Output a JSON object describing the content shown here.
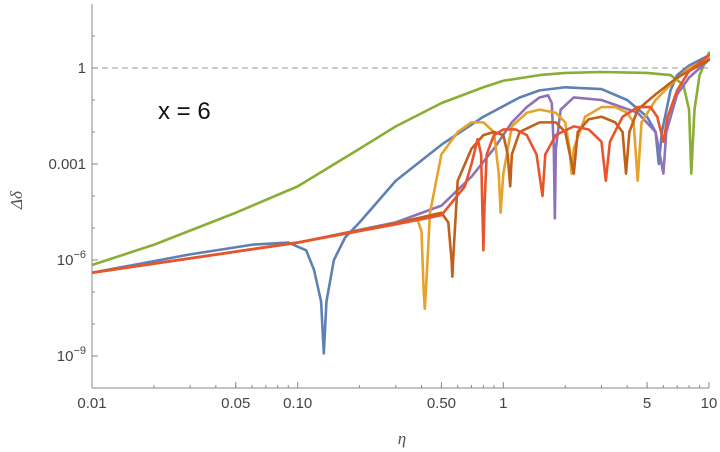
{
  "chart_data": {
    "type": "line",
    "xlabel": "η",
    "ylabel": "Δδ",
    "x_scale": "log",
    "y_scale": "log",
    "xlim": [
      0.01,
      10
    ],
    "ylim": [
      1e-10,
      100
    ],
    "x_ticks": [
      {
        "value": 0.01,
        "label": "0.01"
      },
      {
        "value": 0.05,
        "label": "0.05"
      },
      {
        "value": 0.1,
        "label": "0.10"
      },
      {
        "value": 0.5,
        "label": "0.50"
      },
      {
        "value": 1,
        "label": "1"
      },
      {
        "value": 5,
        "label": "5"
      },
      {
        "value": 10,
        "label": "10"
      }
    ],
    "y_ticks": [
      {
        "value": 1,
        "label": "1",
        "exp": ""
      },
      {
        "value": 0.001,
        "label": "0.001",
        "exp": ""
      },
      {
        "value": 1e-06,
        "label": "10",
        "exp": "−6"
      },
      {
        "value": 1e-09,
        "label": "10",
        "exp": "−9"
      }
    ],
    "reference_line": {
      "y": 1,
      "style": "dashed",
      "color": "#9a9a9a"
    },
    "annotation": "x = 6",
    "grid": false,
    "legend": "none",
    "series": [
      {
        "color": "#8aae35",
        "points": [
          [
            0.01,
            7e-07
          ],
          [
            0.02,
            3e-06
          ],
          [
            0.05,
            3e-05
          ],
          [
            0.1,
            0.0002
          ],
          [
            0.2,
            0.003
          ],
          [
            0.3,
            0.015
          ],
          [
            0.5,
            0.08
          ],
          [
            0.8,
            0.25
          ],
          [
            1,
            0.4
          ],
          [
            1.5,
            0.6
          ],
          [
            2,
            0.7
          ],
          [
            3,
            0.75
          ],
          [
            5,
            0.7
          ],
          [
            6.5,
            0.6
          ],
          [
            7.5,
            0.3
          ],
          [
            8,
            0.05
          ],
          [
            8.2,
            0.0005
          ],
          [
            8.5,
            0.05
          ],
          [
            9,
            0.6
          ],
          [
            10,
            3
          ]
        ]
      },
      {
        "color": "#5e81b5",
        "points": [
          [
            0.01,
            4e-07
          ],
          [
            0.03,
            1.5e-06
          ],
          [
            0.06,
            3e-06
          ],
          [
            0.09,
            3.5e-06
          ],
          [
            0.11,
            2e-06
          ],
          [
            0.12,
            5e-07
          ],
          [
            0.13,
            5e-08
          ],
          [
            0.134,
            1.2e-09
          ],
          [
            0.138,
            5e-08
          ],
          [
            0.15,
            1e-06
          ],
          [
            0.17,
            5e-06
          ],
          [
            0.2,
            1.5e-05
          ],
          [
            0.3,
            0.0003
          ],
          [
            0.5,
            0.004
          ],
          [
            0.8,
            0.03
          ],
          [
            1.2,
            0.12
          ],
          [
            1.5,
            0.2
          ],
          [
            2,
            0.25
          ],
          [
            3,
            0.22
          ],
          [
            4,
            0.1
          ],
          [
            5,
            0.03
          ],
          [
            5.5,
            0.01
          ],
          [
            5.7,
            0.001
          ],
          [
            5.9,
            0.01
          ],
          [
            6.5,
            0.2
          ],
          [
            7,
            0.6
          ],
          [
            8,
            1.2
          ],
          [
            10,
            2.5
          ]
        ]
      },
      {
        "color": "#8e72b8",
        "points": [
          [
            0.01,
            4e-07
          ],
          [
            0.1,
            3.5e-06
          ],
          [
            0.3,
            1.5e-05
          ],
          [
            0.5,
            5e-05
          ],
          [
            0.7,
            0.0004
          ],
          [
            0.9,
            0.003
          ],
          [
            1.1,
            0.02
          ],
          [
            1.3,
            0.06
          ],
          [
            1.5,
            0.12
          ],
          [
            1.65,
            0.14
          ],
          [
            1.72,
            0.08
          ],
          [
            1.76,
            0.003
          ],
          [
            1.78,
            2e-05
          ],
          [
            1.8,
            0.003
          ],
          [
            1.9,
            0.05
          ],
          [
            2.2,
            0.12
          ],
          [
            3,
            0.1
          ],
          [
            4.5,
            0.04
          ],
          [
            5.5,
            0.01
          ],
          [
            6,
            0.0005
          ],
          [
            6.2,
            0.01
          ],
          [
            7,
            0.15
          ],
          [
            8,
            0.5
          ],
          [
            10,
            1.8
          ]
        ]
      },
      {
        "color": "#e6a22b",
        "points": [
          [
            0.01,
            4e-07
          ],
          [
            0.1,
            3.5e-06
          ],
          [
            0.3,
            1.4e-05
          ],
          [
            0.38,
            2e-05
          ],
          [
            0.4,
            8e-06
          ],
          [
            0.41,
            1e-07
          ],
          [
            0.415,
            3e-08
          ],
          [
            0.42,
            1e-07
          ],
          [
            0.44,
            3e-05
          ],
          [
            0.5,
            0.002
          ],
          [
            0.6,
            0.01
          ],
          [
            0.7,
            0.02
          ],
          [
            0.8,
            0.02
          ],
          [
            0.9,
            0.01
          ],
          [
            0.95,
            0.0005
          ],
          [
            0.97,
            3e-05
          ],
          [
            1,
            0.0005
          ],
          [
            1.1,
            0.015
          ],
          [
            1.3,
            0.04
          ],
          [
            1.5,
            0.05
          ],
          [
            1.8,
            0.04
          ],
          [
            2,
            0.02
          ],
          [
            2.1,
            0.003
          ],
          [
            2.15,
            0.0005
          ],
          [
            2.2,
            0.003
          ],
          [
            2.5,
            0.03
          ],
          [
            3,
            0.06
          ],
          [
            3.5,
            0.06
          ],
          [
            4,
            0.04
          ],
          [
            4.3,
            0.02
          ],
          [
            4.5,
            0.0003
          ],
          [
            4.7,
            0.02
          ],
          [
            5.5,
            0.1
          ],
          [
            6.5,
            0.3
          ],
          [
            8,
            1
          ],
          [
            10,
            2
          ]
        ]
      },
      {
        "color": "#c0601a",
        "points": [
          [
            0.01,
            4e-07
          ],
          [
            0.1,
            3.5e-06
          ],
          [
            0.3,
            1.4e-05
          ],
          [
            0.5,
            3e-05
          ],
          [
            0.54,
            1.5e-05
          ],
          [
            0.56,
            1e-06
          ],
          [
            0.565,
            3e-07
          ],
          [
            0.57,
            1e-06
          ],
          [
            0.6,
            0.0003
          ],
          [
            0.7,
            0.003
          ],
          [
            0.8,
            0.008
          ],
          [
            0.9,
            0.01
          ],
          [
            1,
            0.008
          ],
          [
            1.05,
            0.002
          ],
          [
            1.08,
            0.0002
          ],
          [
            1.1,
            0.002
          ],
          [
            1.2,
            0.01
          ],
          [
            1.5,
            0.02
          ],
          [
            1.8,
            0.02
          ],
          [
            2,
            0.01
          ],
          [
            2.2,
            0.0005
          ],
          [
            2.3,
            0.01
          ],
          [
            2.6,
            0.025
          ],
          [
            3,
            0.03
          ],
          [
            3.5,
            0.02
          ],
          [
            3.8,
            0.01
          ],
          [
            3.95,
            0.0005
          ],
          [
            4.1,
            0.01
          ],
          [
            4.5,
            0.05
          ],
          [
            5.5,
            0.15
          ],
          [
            7,
            0.5
          ],
          [
            10,
            1.8
          ]
        ]
      },
      {
        "color": "#e8552d",
        "points": [
          [
            0.01,
            4e-07
          ],
          [
            0.1,
            3.5e-06
          ],
          [
            0.3,
            1.3e-05
          ],
          [
            0.5,
            2.5e-05
          ],
          [
            0.65,
            0.0002
          ],
          [
            0.7,
            0.001
          ],
          [
            0.75,
            0.006
          ],
          [
            0.78,
            0.002
          ],
          [
            0.79,
            5e-05
          ],
          [
            0.8,
            2e-06
          ],
          [
            0.81,
            5e-05
          ],
          [
            0.83,
            0.002
          ],
          [
            0.9,
            0.008
          ],
          [
            1,
            0.012
          ],
          [
            1.15,
            0.012
          ],
          [
            1.3,
            0.008
          ],
          [
            1.45,
            0.002
          ],
          [
            1.55,
            0.0001
          ],
          [
            1.6,
            0.002
          ],
          [
            1.8,
            0.008
          ],
          [
            2.2,
            0.015
          ],
          [
            2.6,
            0.012
          ],
          [
            3,
            0.005
          ],
          [
            3.15,
            0.0003
          ],
          [
            3.3,
            0.005
          ],
          [
            3.8,
            0.03
          ],
          [
            4.5,
            0.06
          ],
          [
            5.2,
            0.06
          ],
          [
            5.6,
            0.03
          ],
          [
            6,
            0.005
          ],
          [
            6.3,
            0.03
          ],
          [
            7,
            0.2
          ],
          [
            8,
            0.8
          ],
          [
            10,
            2.5
          ]
        ]
      }
    ]
  }
}
